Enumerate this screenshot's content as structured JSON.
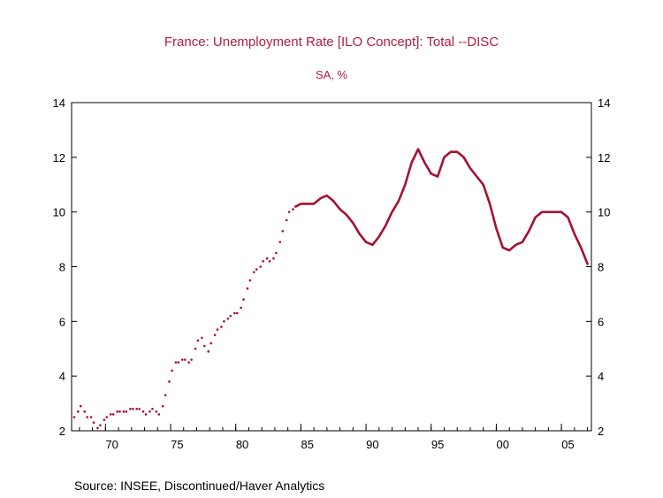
{
  "chart_data": {
    "type": "line",
    "title": "France: Unemployment Rate [ILO Concept]: Total --DISC",
    "subtitle": "SA, %",
    "source": "Source:  INSEE, Discontinued/Haver Analytics",
    "xlim": [
      1967.4,
      2007.3
    ],
    "ylim": [
      2,
      14
    ],
    "y_ticks": [
      2,
      4,
      6,
      8,
      10,
      12,
      14
    ],
    "x_ticks": [
      {
        "value": 1970,
        "label": "70"
      },
      {
        "value": 1975,
        "label": "75"
      },
      {
        "value": 1980,
        "label": "80"
      },
      {
        "value": 1985,
        "label": "85"
      },
      {
        "value": 1990,
        "label": "90"
      },
      {
        "value": 1995,
        "label": "95"
      },
      {
        "value": 2000,
        "label": "00"
      },
      {
        "value": 2005,
        "label": "05"
      }
    ],
    "grid": false,
    "color": "#a5112f",
    "series": [
      {
        "style": "dotted",
        "points": [
          [
            1967.6,
            2.5
          ],
          [
            1967.9,
            2.7
          ],
          [
            1968.1,
            2.9
          ],
          [
            1968.4,
            2.7
          ],
          [
            1968.6,
            2.5
          ],
          [
            1968.9,
            2.5
          ],
          [
            1969.1,
            2.3
          ],
          [
            1969.4,
            2.1
          ],
          [
            1969.6,
            2.2
          ],
          [
            1969.9,
            2.4
          ],
          [
            1970.1,
            2.5
          ],
          [
            1970.4,
            2.6
          ],
          [
            1970.6,
            2.6
          ],
          [
            1970.9,
            2.7
          ],
          [
            1971.1,
            2.7
          ],
          [
            1971.4,
            2.7
          ],
          [
            1971.6,
            2.7
          ],
          [
            1971.9,
            2.8
          ],
          [
            1972.1,
            2.8
          ],
          [
            1972.4,
            2.8
          ],
          [
            1972.6,
            2.8
          ],
          [
            1972.9,
            2.7
          ],
          [
            1973.1,
            2.6
          ],
          [
            1973.4,
            2.7
          ],
          [
            1973.6,
            2.8
          ],
          [
            1973.9,
            2.7
          ],
          [
            1974.1,
            2.6
          ],
          [
            1974.4,
            2.9
          ],
          [
            1974.6,
            3.3
          ],
          [
            1974.9,
            3.8
          ],
          [
            1975.1,
            4.2
          ],
          [
            1975.4,
            4.5
          ],
          [
            1975.6,
            4.5
          ],
          [
            1975.9,
            4.6
          ],
          [
            1976.1,
            4.6
          ],
          [
            1976.4,
            4.5
          ],
          [
            1976.6,
            4.6
          ],
          [
            1976.9,
            5.0
          ],
          [
            1977.1,
            5.3
          ],
          [
            1977.4,
            5.4
          ],
          [
            1977.6,
            5.1
          ],
          [
            1977.9,
            4.9
          ],
          [
            1978.1,
            5.2
          ],
          [
            1978.4,
            5.5
          ],
          [
            1978.6,
            5.7
          ],
          [
            1978.9,
            5.8
          ],
          [
            1979.1,
            6.0
          ],
          [
            1979.4,
            6.1
          ],
          [
            1979.6,
            6.2
          ],
          [
            1979.9,
            6.3
          ],
          [
            1980.1,
            6.3
          ],
          [
            1980.4,
            6.5
          ],
          [
            1980.6,
            6.8
          ],
          [
            1980.9,
            7.2
          ],
          [
            1981.1,
            7.5
          ],
          [
            1981.4,
            7.8
          ],
          [
            1981.6,
            7.9
          ],
          [
            1981.9,
            8.0
          ],
          [
            1982.1,
            8.2
          ],
          [
            1982.4,
            8.3
          ],
          [
            1982.6,
            8.2
          ],
          [
            1982.9,
            8.3
          ],
          [
            1983.1,
            8.5
          ],
          [
            1983.4,
            8.9
          ],
          [
            1983.6,
            9.3
          ],
          [
            1983.9,
            9.7
          ],
          [
            1984.1,
            10.0
          ],
          [
            1984.4,
            10.1
          ],
          [
            1984.6,
            10.2
          ]
        ]
      },
      {
        "style": "solid",
        "points": [
          [
            1984.6,
            10.2
          ],
          [
            1985.0,
            10.3
          ],
          [
            1985.5,
            10.3
          ],
          [
            1986.0,
            10.3
          ],
          [
            1986.5,
            10.5
          ],
          [
            1987.0,
            10.6
          ],
          [
            1987.5,
            10.4
          ],
          [
            1988.0,
            10.1
          ],
          [
            1988.5,
            9.9
          ],
          [
            1989.0,
            9.6
          ],
          [
            1989.5,
            9.2
          ],
          [
            1990.0,
            8.9
          ],
          [
            1990.5,
            8.8
          ],
          [
            1991.0,
            9.1
          ],
          [
            1991.5,
            9.5
          ],
          [
            1992.0,
            10.0
          ],
          [
            1992.5,
            10.4
          ],
          [
            1993.0,
            11.0
          ],
          [
            1993.5,
            11.8
          ],
          [
            1994.0,
            12.3
          ],
          [
            1994.5,
            11.8
          ],
          [
            1995.0,
            11.4
          ],
          [
            1995.5,
            11.3
          ],
          [
            1996.0,
            12.0
          ],
          [
            1996.5,
            12.2
          ],
          [
            1997.0,
            12.2
          ],
          [
            1997.5,
            12.0
          ],
          [
            1998.0,
            11.6
          ],
          [
            1998.5,
            11.3
          ],
          [
            1999.0,
            11.0
          ],
          [
            1999.5,
            10.3
          ],
          [
            2000.0,
            9.4
          ],
          [
            2000.5,
            8.7
          ],
          [
            2001.0,
            8.6
          ],
          [
            2001.5,
            8.8
          ],
          [
            2002.0,
            8.9
          ],
          [
            2002.5,
            9.3
          ],
          [
            2003.0,
            9.8
          ],
          [
            2003.5,
            10.0
          ],
          [
            2004.0,
            10.0
          ],
          [
            2004.5,
            10.0
          ],
          [
            2005.0,
            10.0
          ],
          [
            2005.5,
            9.8
          ],
          [
            2006.0,
            9.2
          ],
          [
            2006.5,
            8.7
          ],
          [
            2007.0,
            8.1
          ]
        ]
      }
    ]
  }
}
